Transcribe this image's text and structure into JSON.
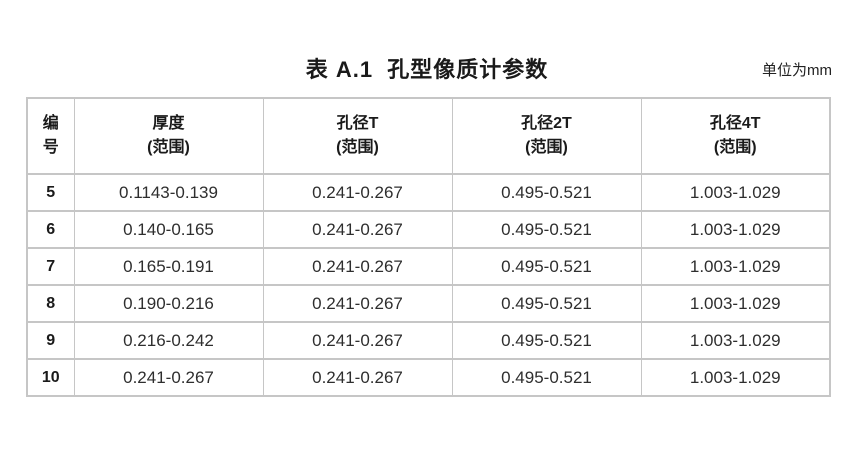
{
  "page": {
    "title": "表 A.1  孔型像质计参数",
    "unit_label": "单位为mm",
    "colors": {
      "text": "#1a1a1a",
      "data_text": "#2e2e2e",
      "border": "#c6c6c6",
      "background": "#ffffff"
    }
  },
  "table": {
    "headers": [
      {
        "line1": "编",
        "line2": "号"
      },
      {
        "line1": "厚度",
        "line2": "(范围)"
      },
      {
        "line1": "孔径T",
        "line2": "(范围)"
      },
      {
        "line1": "孔径2T",
        "line2": "(范围)"
      },
      {
        "line1": "孔径4T",
        "line2": "(范围)"
      }
    ],
    "rows": [
      {
        "no": "5",
        "thickness": "0.1143-0.139",
        "t": "0.241-0.267",
        "t2": "0.495-0.521",
        "t4": "1.003-1.029"
      },
      {
        "no": "6",
        "thickness": "0.140-0.165",
        "t": "0.241-0.267",
        "t2": "0.495-0.521",
        "t4": "1.003-1.029"
      },
      {
        "no": "7",
        "thickness": "0.165-0.191",
        "t": "0.241-0.267",
        "t2": "0.495-0.521",
        "t4": "1.003-1.029"
      },
      {
        "no": "8",
        "thickness": "0.190-0.216",
        "t": "0.241-0.267",
        "t2": "0.495-0.521",
        "t4": "1.003-1.029"
      },
      {
        "no": "9",
        "thickness": "0.216-0.242",
        "t": "0.241-0.267",
        "t2": "0.495-0.521",
        "t4": "1.003-1.029"
      },
      {
        "no": "10",
        "thickness": "0.241-0.267",
        "t": "0.241-0.267",
        "t2": "0.495-0.521",
        "t4": "1.003-1.029"
      }
    ]
  }
}
